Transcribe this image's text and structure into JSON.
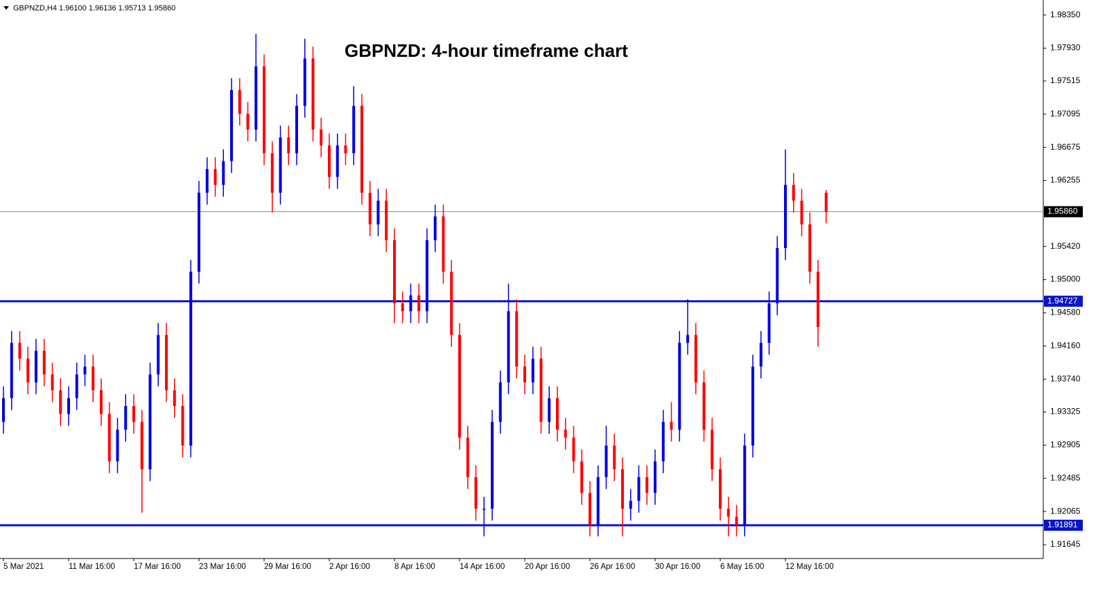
{
  "chart_data": {
    "type": "candlestick",
    "title": "GBPNZD: 4-hour timeframe chart",
    "header": "GBPNZD,H4  1.96100 1.96136 1.95713 1.95860",
    "categories": [
      "5 Mar 2021",
      null,
      null,
      null,
      null,
      null,
      null,
      null,
      "11 Mar 16:00",
      null,
      null,
      null,
      null,
      null,
      null,
      null,
      "17 Mar 16:00",
      null,
      null,
      null,
      null,
      null,
      null,
      null,
      "23 Mar 16:00",
      null,
      null,
      null,
      null,
      null,
      null,
      null,
      "29 Mar 16:00",
      null,
      null,
      null,
      null,
      null,
      null,
      null,
      "2 Apr 16:00",
      null,
      null,
      null,
      null,
      null,
      null,
      null,
      "8 Apr 16:00",
      null,
      null,
      null,
      null,
      null,
      null,
      null,
      "14 Apr 16:00",
      null,
      null,
      null,
      null,
      null,
      null,
      null,
      "20 Apr 16:00",
      null,
      null,
      null,
      null,
      null,
      null,
      null,
      "26 Apr 16:00",
      null,
      null,
      null,
      null,
      null,
      null,
      null,
      "30 Apr 16:00",
      null,
      null,
      null,
      null,
      null,
      null,
      null,
      "6 May 16:00",
      null,
      null,
      null,
      null,
      null,
      null,
      null,
      "12 May 16:00",
      null,
      null,
      null,
      null,
      null
    ],
    "open": [
      1.932,
      1.935,
      1.942,
      1.94,
      1.937,
      1.941,
      1.938,
      1.936,
      1.933,
      1.935,
      1.938,
      1.939,
      1.936,
      1.933,
      1.927,
      1.931,
      1.934,
      1.932,
      1.926,
      1.938,
      1.943,
      1.936,
      1.934,
      1.929,
      1.951,
      1.961,
      1.964,
      1.962,
      1.965,
      1.974,
      1.971,
      1.969,
      1.977,
      1.966,
      1.961,
      1.968,
      1.966,
      1.972,
      1.978,
      1.969,
      1.967,
      1.963,
      1.967,
      1.966,
      1.972,
      1.961,
      1.957,
      1.96,
      1.955,
      1.947,
      1.946,
      1.948,
      1.946,
      1.955,
      1.958,
      1.951,
      1.943,
      1.93,
      1.925,
      1.921,
      1.921,
      1.932,
      1.937,
      1.946,
      1.939,
      1.937,
      1.94,
      1.932,
      1.935,
      1.931,
      1.93,
      1.927,
      1.923,
      1.919,
      1.925,
      1.929,
      1.926,
      1.921,
      1.922,
      1.925,
      1.923,
      1.927,
      1.932,
      1.931,
      1.942,
      1.943,
      1.937,
      1.931,
      1.926,
      1.921,
      1.92,
      1.919,
      1.929,
      1.939,
      1.942,
      1.947,
      1.954,
      1.962,
      1.96,
      1.957,
      1.951,
      1.961
    ],
    "high": [
      1.9365,
      1.9435,
      1.9435,
      1.9415,
      1.9425,
      1.9425,
      1.9395,
      1.9375,
      1.9365,
      1.9395,
      1.9405,
      1.9405,
      1.9375,
      1.9345,
      1.9325,
      1.9355,
      1.9355,
      1.9335,
      1.9395,
      1.9445,
      1.9445,
      1.9375,
      1.9355,
      1.9525,
      1.9625,
      1.9655,
      1.9655,
      1.9665,
      1.9755,
      1.9755,
      1.9725,
      1.9811,
      1.9785,
      1.9675,
      1.9695,
      1.9695,
      1.9735,
      1.9805,
      1.9795,
      1.9705,
      1.9685,
      1.9685,
      1.9685,
      1.9745,
      1.9735,
      1.9625,
      1.9615,
      1.9615,
      1.9565,
      1.9485,
      1.9495,
      1.9495,
      1.9565,
      1.9595,
      1.9595,
      1.9525,
      1.9445,
      1.9315,
      1.9265,
      1.9225,
      1.9335,
      1.9385,
      1.9495,
      1.9475,
      1.9405,
      1.9415,
      1.9415,
      1.9365,
      1.9365,
      1.9325,
      1.9315,
      1.9285,
      1.9245,
      1.9265,
      1.9315,
      1.9305,
      1.9275,
      1.9235,
      1.9265,
      1.9265,
      1.9285,
      1.9335,
      1.9345,
      1.9435,
      1.9475,
      1.9445,
      1.9385,
      1.9325,
      1.9275,
      1.9225,
      1.9215,
      1.9305,
      1.9405,
      1.9435,
      1.9485,
      1.9555,
      1.9665,
      1.9635,
      1.9615,
      1.9585,
      1.9525,
      1.96136
    ],
    "low": [
      1.9305,
      1.9335,
      1.9385,
      1.9355,
      1.9355,
      1.9365,
      1.9345,
      1.9315,
      1.9315,
      1.9335,
      1.9365,
      1.9345,
      1.9315,
      1.9255,
      1.9255,
      1.9295,
      1.9305,
      1.9205,
      1.9245,
      1.9365,
      1.9345,
      1.9325,
      1.9275,
      1.9275,
      1.9495,
      1.9595,
      1.9605,
      1.9605,
      1.9635,
      1.9695,
      1.9675,
      1.9675,
      1.9645,
      1.9585,
      1.9595,
      1.9645,
      1.9645,
      1.9705,
      1.9675,
      1.9655,
      1.9615,
      1.9615,
      1.9645,
      1.9645,
      1.9595,
      1.9555,
      1.9555,
      1.9535,
      1.9445,
      1.9445,
      1.9445,
      1.9445,
      1.9445,
      1.9535,
      1.9495,
      1.9415,
      1.9285,
      1.9235,
      1.9195,
      1.9175,
      1.9195,
      1.9305,
      1.9355,
      1.9375,
      1.9355,
      1.9355,
      1.9305,
      1.9305,
      1.9295,
      1.9285,
      1.9255,
      1.9215,
      1.9175,
      1.9175,
      1.9235,
      1.9245,
      1.9175,
      1.9195,
      1.9205,
      1.9215,
      1.9215,
      1.9255,
      1.9295,
      1.9295,
      1.9405,
      1.9355,
      1.9295,
      1.9245,
      1.9195,
      1.9175,
      1.9175,
      1.9175,
      1.9275,
      1.9375,
      1.9405,
      1.9455,
      1.9525,
      1.9585,
      1.9555,
      1.9495,
      1.9415,
      1.95713
    ],
    "close": [
      1.935,
      1.942,
      1.94,
      1.937,
      1.941,
      1.938,
      1.936,
      1.933,
      1.935,
      1.938,
      1.939,
      1.936,
      1.933,
      1.927,
      1.931,
      1.934,
      1.932,
      1.926,
      1.938,
      1.943,
      1.936,
      1.934,
      1.929,
      1.951,
      1.961,
      1.964,
      1.962,
      1.965,
      1.974,
      1.971,
      1.969,
      1.977,
      1.966,
      1.961,
      1.968,
      1.966,
      1.972,
      1.978,
      1.969,
      1.967,
      1.963,
      1.967,
      1.966,
      1.972,
      1.961,
      1.957,
      1.96,
      1.955,
      1.947,
      1.946,
      1.948,
      1.946,
      1.955,
      1.958,
      1.951,
      1.943,
      1.93,
      1.925,
      1.921,
      1.921,
      1.932,
      1.937,
      1.946,
      1.939,
      1.937,
      1.94,
      1.932,
      1.935,
      1.931,
      1.93,
      1.927,
      1.923,
      1.919,
      1.925,
      1.929,
      1.926,
      1.921,
      1.922,
      1.925,
      1.923,
      1.927,
      1.932,
      1.931,
      1.942,
      1.943,
      1.937,
      1.931,
      1.926,
      1.921,
      1.92,
      1.919,
      1.929,
      1.939,
      1.942,
      1.947,
      1.954,
      1.962,
      1.96,
      1.957,
      1.951,
      1.944,
      1.9586
    ],
    "up_color": "#0000e0",
    "down_color": "#ff0000",
    "levels": [
      1.94727,
      1.91891
    ],
    "level_color": "#0a14c8",
    "current_price": {
      "value": 1.9586,
      "label": "1.95860"
    },
    "ylim": [
      1.9147,
      1.9854
    ],
    "yticks": [
      {
        "value": 1.9835,
        "label": "1.98350"
      },
      {
        "value": 1.9793,
        "label": "1.97930"
      },
      1.97515,
      1.97095,
      1.96675,
      1.96255,
      {
        "value": 1.9542,
        "label": "1.95420"
      },
      {
        "value": 1.95,
        "label": "1.95000"
      },
      {
        "value": 1.9458,
        "label": "1.94580"
      },
      {
        "value": 1.9416,
        "label": "1.94160"
      },
      {
        "value": 1.9374,
        "label": "1.93740"
      },
      1.93325,
      1.92905,
      1.92485,
      1.92065,
      1.91645
    ]
  }
}
